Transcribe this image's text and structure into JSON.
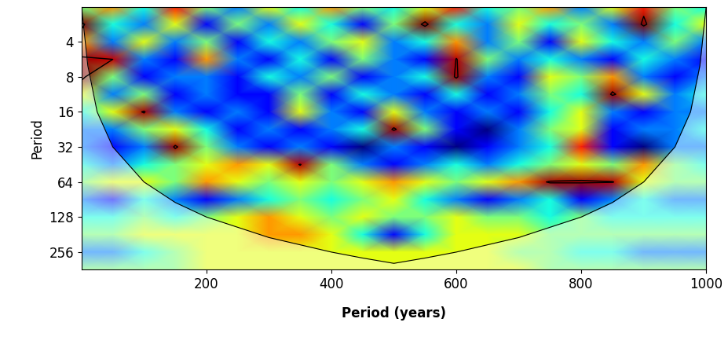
{
  "chart_data": {
    "type": "heatmap",
    "xlabel": "Period (years)",
    "ylabel": "Period",
    "xlim": [
      0,
      1000
    ],
    "xticks": [
      200,
      400,
      600,
      800,
      1000
    ],
    "ylim": [
      362,
      2
    ],
    "yticks": [
      4,
      8,
      16,
      32,
      64,
      128,
      256
    ],
    "log": "y",
    "x": [
      0,
      50,
      100,
      150,
      200,
      250,
      300,
      350,
      400,
      450,
      500,
      550,
      600,
      650,
      700,
      750,
      800,
      850,
      900,
      950,
      1000
    ],
    "periods": [
      2,
      2.83,
      4,
      5.66,
      8,
      11.3,
      16,
      22.6,
      32,
      45.3,
      64,
      90.5,
      128,
      181,
      256,
      362
    ],
    "cells": [
      [
        0.5,
        0.7,
        0.4,
        0.8,
        0.5,
        0.3,
        0.6,
        0.4,
        0.7,
        0.5,
        0.4,
        0.6,
        0.8,
        0.4,
        0.5,
        0.7,
        0.3,
        0.6,
        0.8,
        0.5,
        0.4
      ],
      [
        0.9,
        0.4,
        0.3,
        0.6,
        0.2,
        0.5,
        0.3,
        0.6,
        0.4,
        0.2,
        0.5,
        0.9,
        0.4,
        0.3,
        0.6,
        0.4,
        0.5,
        0.3,
        0.9,
        0.4,
        0.6
      ],
      [
        0.7,
        0.3,
        0.6,
        0.3,
        0.5,
        0.2,
        0.4,
        0.3,
        0.5,
        0.6,
        0.3,
        0.4,
        0.7,
        0.3,
        0.5,
        0.2,
        0.6,
        0.4,
        0.3,
        0.5,
        0.3
      ],
      [
        0.88,
        0.85,
        0.3,
        0.2,
        0.7,
        0.3,
        0.2,
        0.4,
        0.2,
        0.5,
        0.3,
        0.2,
        0.86,
        0.5,
        0.3,
        0.4,
        0.3,
        0.2,
        0.4,
        0.3,
        0.2
      ],
      [
        0.9,
        0.5,
        0.2,
        0.3,
        0.3,
        0.2,
        0.4,
        0.3,
        0.5,
        0.2,
        0.3,
        0.4,
        0.88,
        0.3,
        0.2,
        0.6,
        0.5,
        0.7,
        0.3,
        0.2,
        0.3
      ],
      [
        0.6,
        0.3,
        0.5,
        0.2,
        0.3,
        0.2,
        0.2,
        0.5,
        0.2,
        0.4,
        0.3,
        0.2,
        0.4,
        0.2,
        0.3,
        0.5,
        0.4,
        0.88,
        0.6,
        0.3,
        0.4
      ],
      [
        0.4,
        0.6,
        0.87,
        0.3,
        0.2,
        0.3,
        0.2,
        0.6,
        0.3,
        0.2,
        0.6,
        0.3,
        0.2,
        0.3,
        0.2,
        0.4,
        0.6,
        0.3,
        0.2,
        0.3,
        0.3
      ],
      [
        0.3,
        0.3,
        0.5,
        0.6,
        0.4,
        0.2,
        0.3,
        0.2,
        0.3,
        0.4,
        0.88,
        0.5,
        0.2,
        0.1,
        0.3,
        0.5,
        0.6,
        0.2,
        0.3,
        0.3,
        0.4
      ],
      [
        0.3,
        0.2,
        0.3,
        0.88,
        0.5,
        0.3,
        0.2,
        0.3,
        0.2,
        0.1,
        0.3,
        0.2,
        0.1,
        0.2,
        0.3,
        0.4,
        0.8,
        0.2,
        0.1,
        0.3,
        0.3
      ],
      [
        0.4,
        0.3,
        0.4,
        0.5,
        0.6,
        0.7,
        0.6,
        0.86,
        0.5,
        0.3,
        0.2,
        0.3,
        0.4,
        0.3,
        0.4,
        0.5,
        0.6,
        0.5,
        0.7,
        0.5,
        0.4
      ],
      [
        0.5,
        0.6,
        0.6,
        0.5,
        0.7,
        0.6,
        0.5,
        0.6,
        0.5,
        0.6,
        0.7,
        0.6,
        0.5,
        0.6,
        0.7,
        0.87,
        0.88,
        0.86,
        0.6,
        0.5,
        0.5
      ],
      [
        0.3,
        0.2,
        0.4,
        0.3,
        0.2,
        0.3,
        0.4,
        0.5,
        0.4,
        0.5,
        0.6,
        0.4,
        0.3,
        0.2,
        0.3,
        0.4,
        0.2,
        0.3,
        0.4,
        0.3,
        0.3
      ],
      [
        0.4,
        0.4,
        0.5,
        0.4,
        0.5,
        0.6,
        0.7,
        0.6,
        0.5,
        0.6,
        0.5,
        0.5,
        0.6,
        0.5,
        0.5,
        0.4,
        0.5,
        0.4,
        0.4,
        0.4,
        0.4
      ],
      [
        0.5,
        0.5,
        0.6,
        0.6,
        0.6,
        0.6,
        0.7,
        0.7,
        0.6,
        0.4,
        0.2,
        0.4,
        0.6,
        0.6,
        0.6,
        0.5,
        0.5,
        0.5,
        0.5,
        0.5,
        0.5
      ],
      [
        0.3,
        0.3,
        0.4,
        0.5,
        0.6,
        0.6,
        0.6,
        0.6,
        0.6,
        0.6,
        0.6,
        0.6,
        0.6,
        0.6,
        0.5,
        0.5,
        0.4,
        0.4,
        0.3,
        0.3,
        0.3
      ],
      [
        0.5,
        0.5,
        0.5,
        0.5,
        0.6,
        0.6,
        0.6,
        0.6,
        0.6,
        0.6,
        0.6,
        0.6,
        0.6,
        0.6,
        0.6,
        0.5,
        0.5,
        0.5,
        0.5,
        0.5,
        0.5
      ]
    ],
    "significance_level": 0.85,
    "coi": {
      "x": [
        0,
        10,
        25,
        50,
        100,
        150,
        200,
        300,
        400,
        450,
        500,
        550,
        600,
        700,
        800,
        850,
        900,
        950,
        975,
        990,
        1000
      ],
      "period": [
        2,
        6.4,
        16,
        32,
        64,
        96,
        128,
        192,
        256,
        288,
        320,
        288,
        256,
        192,
        128,
        96,
        64,
        32,
        16,
        6.4,
        2
      ]
    }
  }
}
